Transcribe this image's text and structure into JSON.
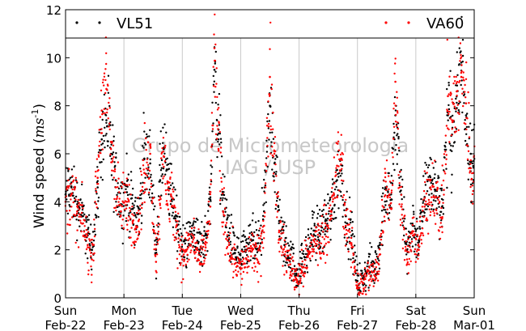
{
  "chart_data": {
    "type": "scatter",
    "title": "",
    "xlabel": "",
    "ylabel": "Wind speed",
    "ylabel_unit": "ms",
    "ylabel_unit_exp": "-1",
    "ylim": [
      0,
      12
    ],
    "yticks": [
      0,
      2,
      4,
      6,
      8,
      10,
      12
    ],
    "xlim_days": [
      0,
      7
    ],
    "xticks": [
      {
        "day": "Sun",
        "date": "Feb-22"
      },
      {
        "day": "Mon",
        "date": "Feb-23"
      },
      {
        "day": "Tue",
        "date": "Feb-24"
      },
      {
        "day": "Wed",
        "date": "Feb-25"
      },
      {
        "day": "Thu",
        "date": "Feb-26"
      },
      {
        "day": "Fri",
        "date": "Feb-27"
      },
      {
        "day": "Sat",
        "date": "Feb-28"
      },
      {
        "day": "Sun",
        "date": "Mar-01"
      }
    ],
    "grid": "vertical",
    "legend_position": "top",
    "watermark": [
      "Grupo de Micrometeorologia",
      "IAG / USP"
    ],
    "series": [
      {
        "name": "VL51",
        "color": "#000000",
        "values": [
          [
            0.0,
            4.3
          ],
          [
            0.1,
            4.6
          ],
          [
            0.2,
            3.9
          ],
          [
            0.3,
            3.4
          ],
          [
            0.38,
            2.6
          ],
          [
            0.45,
            2.0
          ],
          [
            0.55,
            4.6
          ],
          [
            0.62,
            6.6
          ],
          [
            0.7,
            7.4
          ],
          [
            0.78,
            6.0
          ],
          [
            0.86,
            4.9
          ],
          [
            0.95,
            3.9
          ],
          [
            1.05,
            4.4
          ],
          [
            1.15,
            3.7
          ],
          [
            1.25,
            3.5
          ],
          [
            1.35,
            5.8
          ],
          [
            1.45,
            5.6
          ],
          [
            1.55,
            2.0
          ],
          [
            1.62,
            4.9
          ],
          [
            1.68,
            6.2
          ],
          [
            1.75,
            4.8
          ],
          [
            1.82,
            4.1
          ],
          [
            1.9,
            3.4
          ],
          [
            2.0,
            2.0
          ],
          [
            2.1,
            2.4
          ],
          [
            2.2,
            2.8
          ],
          [
            2.3,
            2.0
          ],
          [
            2.4,
            2.6
          ],
          [
            2.48,
            4.1
          ],
          [
            2.55,
            9.5
          ],
          [
            2.62,
            7.0
          ],
          [
            2.7,
            4.3
          ],
          [
            2.8,
            2.6
          ],
          [
            2.9,
            2.0
          ],
          [
            3.0,
            1.6
          ],
          [
            3.1,
            2.0
          ],
          [
            3.2,
            2.4
          ],
          [
            3.3,
            2.0
          ],
          [
            3.4,
            3.6
          ],
          [
            3.5,
            8.0
          ],
          [
            3.58,
            5.6
          ],
          [
            3.66,
            3.2
          ],
          [
            3.75,
            2.2
          ],
          [
            3.85,
            1.8
          ],
          [
            3.95,
            1.0
          ],
          [
            4.05,
            1.4
          ],
          [
            4.15,
            2.0
          ],
          [
            4.25,
            2.8
          ],
          [
            4.35,
            2.7
          ],
          [
            4.45,
            3.2
          ],
          [
            4.55,
            3.6
          ],
          [
            4.65,
            4.9
          ],
          [
            4.72,
            5.3
          ],
          [
            4.8,
            3.4
          ],
          [
            4.9,
            2.6
          ],
          [
            5.0,
            0.7
          ],
          [
            5.1,
            0.8
          ],
          [
            5.2,
            1.3
          ],
          [
            5.3,
            1.2
          ],
          [
            5.38,
            2.2
          ],
          [
            5.48,
            4.6
          ],
          [
            5.58,
            4.1
          ],
          [
            5.65,
            7.6
          ],
          [
            5.75,
            4.3
          ],
          [
            5.85,
            2.0
          ],
          [
            5.95,
            3.0
          ],
          [
            6.05,
            2.4
          ],
          [
            6.15,
            4.2
          ],
          [
            6.25,
            4.9
          ],
          [
            6.35,
            4.5
          ],
          [
            6.45,
            3.8
          ],
          [
            6.55,
            7.6
          ],
          [
            6.62,
            6.8
          ],
          [
            6.7,
            7.9
          ],
          [
            6.78,
            9.8
          ],
          [
            6.86,
            7.6
          ],
          [
            6.94,
            6.0
          ],
          [
            6.99,
            5.7
          ]
        ]
      },
      {
        "name": "VA60",
        "color": "#ff0000",
        "values": [
          [
            0.0,
            4.0
          ],
          [
            0.1,
            4.3
          ],
          [
            0.2,
            3.6
          ],
          [
            0.3,
            3.1
          ],
          [
            0.38,
            2.2
          ],
          [
            0.45,
            1.6
          ],
          [
            0.55,
            5.0
          ],
          [
            0.62,
            7.8
          ],
          [
            0.7,
            8.7
          ],
          [
            0.78,
            6.5
          ],
          [
            0.86,
            4.6
          ],
          [
            0.95,
            3.6
          ],
          [
            1.05,
            4.0
          ],
          [
            1.15,
            3.2
          ],
          [
            1.25,
            3.2
          ],
          [
            1.35,
            5.2
          ],
          [
            1.45,
            6.0
          ],
          [
            1.55,
            1.5
          ],
          [
            1.62,
            4.2
          ],
          [
            1.68,
            5.9
          ],
          [
            1.75,
            4.5
          ],
          [
            1.82,
            3.8
          ],
          [
            1.9,
            3.0
          ],
          [
            2.0,
            1.6
          ],
          [
            2.1,
            2.1
          ],
          [
            2.2,
            2.5
          ],
          [
            2.3,
            1.4
          ],
          [
            2.4,
            2.1
          ],
          [
            2.48,
            3.8
          ],
          [
            2.55,
            10.4
          ],
          [
            2.62,
            6.2
          ],
          [
            2.7,
            3.6
          ],
          [
            2.8,
            2.2
          ],
          [
            2.9,
            1.6
          ],
          [
            3.0,
            1.2
          ],
          [
            3.1,
            1.6
          ],
          [
            3.2,
            2.0
          ],
          [
            3.3,
            1.5
          ],
          [
            3.4,
            3.0
          ],
          [
            3.5,
            9.2
          ],
          [
            3.58,
            6.1
          ],
          [
            3.66,
            2.8
          ],
          [
            3.75,
            1.8
          ],
          [
            3.85,
            1.4
          ],
          [
            3.95,
            0.8
          ],
          [
            4.05,
            1.1
          ],
          [
            4.15,
            1.7
          ],
          [
            4.25,
            2.4
          ],
          [
            4.35,
            2.3
          ],
          [
            4.45,
            2.9
          ],
          [
            4.55,
            3.3
          ],
          [
            4.65,
            5.5
          ],
          [
            4.72,
            5.8
          ],
          [
            4.8,
            3.0
          ],
          [
            4.9,
            2.2
          ],
          [
            5.0,
            0.5
          ],
          [
            5.1,
            0.6
          ],
          [
            5.2,
            1.0
          ],
          [
            5.3,
            0.9
          ],
          [
            5.38,
            1.8
          ],
          [
            5.48,
            5.2
          ],
          [
            5.58,
            3.7
          ],
          [
            5.65,
            9.0
          ],
          [
            5.75,
            3.8
          ],
          [
            5.85,
            1.6
          ],
          [
            5.95,
            2.6
          ],
          [
            6.05,
            2.0
          ],
          [
            6.15,
            3.8
          ],
          [
            6.25,
            4.6
          ],
          [
            6.35,
            4.2
          ],
          [
            6.45,
            3.3
          ],
          [
            6.55,
            8.4
          ],
          [
            6.62,
            7.4
          ],
          [
            6.7,
            8.6
          ],
          [
            6.78,
            9.2
          ],
          [
            6.86,
            8.1
          ],
          [
            6.94,
            5.4
          ],
          [
            6.99,
            5.2
          ]
        ]
      }
    ]
  }
}
